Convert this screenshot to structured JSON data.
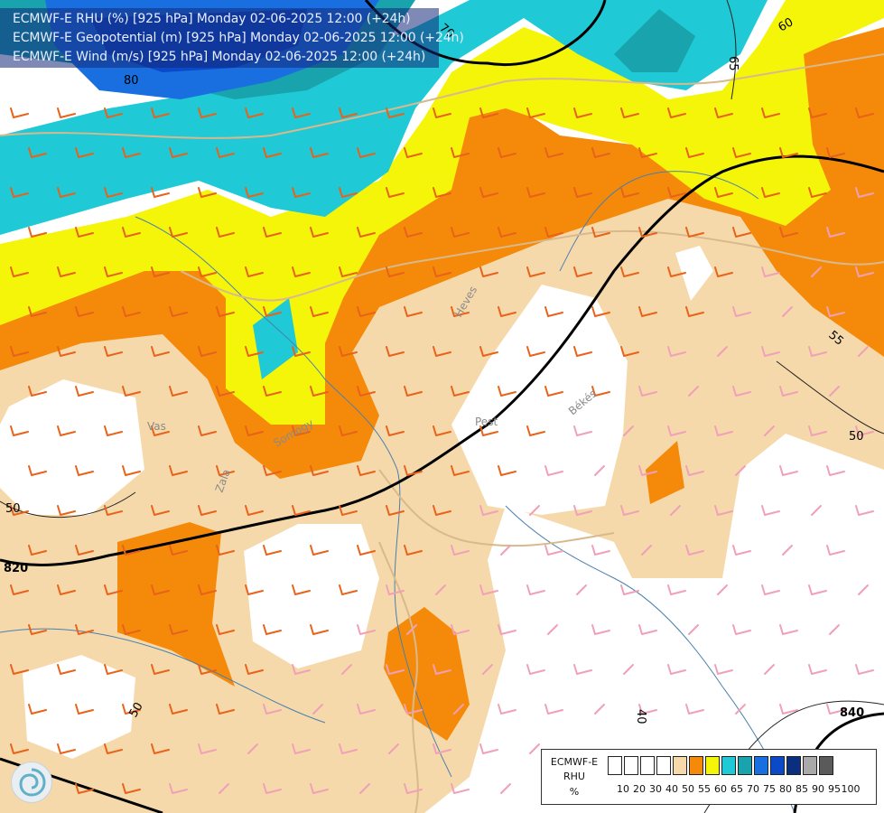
{
  "header": {
    "line1": "ECMWF-E RHU (%) [925 hPa] Monday 02-06-2025 12:00 (+24h)",
    "line2": "ECMWF-E Geopotential (m) [925 hPa] Monday 02-06-2025 12:00 (+24h)",
    "line3": "ECMWF-E Wind (m/s) [925 hPa] Monday 02-06-2025 12:00 (+24h)"
  },
  "legend": {
    "line1": "ECMWF-E",
    "line2": "RHU",
    "line3": "%",
    "bins": [
      {
        "label": "10",
        "color": "#ffffff"
      },
      {
        "label": "20",
        "color": "#ffffff"
      },
      {
        "label": "30",
        "color": "#ffffff"
      },
      {
        "label": "40",
        "color": "#ffffff"
      },
      {
        "label": "50",
        "color": "#f6d9aa"
      },
      {
        "label": "55",
        "color": "#f58a0a"
      },
      {
        "label": "60",
        "color": "#f5f50a"
      },
      {
        "label": "65",
        "color": "#1fc9d6"
      },
      {
        "label": "70",
        "color": "#18a3ad"
      },
      {
        "label": "75",
        "color": "#1a6fe0"
      },
      {
        "label": "80",
        "color": "#0a49c7"
      },
      {
        "label": "85",
        "color": "#0a2f7e"
      },
      {
        "label": "90",
        "color": "#a9a9a9"
      },
      {
        "label": "95",
        "color": "#5a5a5a"
      },
      {
        "label": "100",
        "color": ""
      }
    ]
  },
  "map_labels": {
    "contour_820": "820",
    "contour_840": "840",
    "rh_50_a": "50",
    "rh_50_b": "50",
    "rh_50_c": "50",
    "rh_55": "55",
    "rh_60": "60",
    "rh_65": "65",
    "rh_70": "70",
    "rh_80": "80",
    "rh_40": "40",
    "place_vas": "Vas",
    "place_zala": "Zala",
    "place_somogy": "Somogy",
    "place_pest": "Pest",
    "place_bekes": "Békés",
    "place_heves": "Heves"
  },
  "colors": {
    "rh_50": "#f6d9aa",
    "rh_55": "#f58a0a",
    "rh_60": "#f5f50a",
    "rh_65": "#1fc9d6",
    "rh_70": "#18a3ad",
    "rh_75": "#1a6fe0",
    "rh_80": "#0a49c7",
    "wind_orange": "#e8621a",
    "wind_pink": "#f0a0b8"
  }
}
